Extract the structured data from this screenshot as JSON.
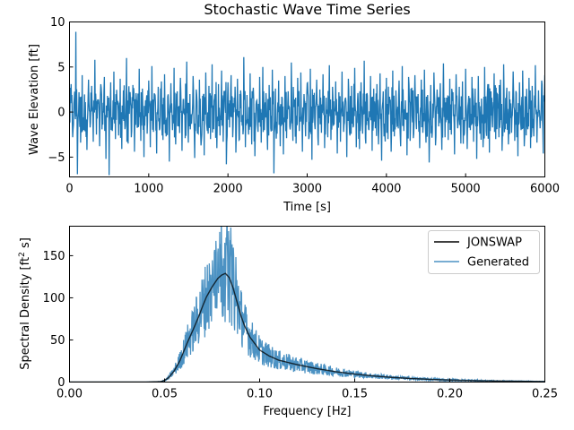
{
  "chart_data": [
    {
      "type": "line",
      "title": "Stochastic Wave Time Series",
      "xlabel": "Time [s]",
      "ylabel": "Wave Elevation [ft]",
      "xlim": [
        0,
        6000
      ],
      "ylim": [
        -7.2,
        10
      ],
      "xticks": [
        0,
        1000,
        2000,
        3000,
        4000,
        5000,
        6000
      ],
      "yticks": [
        -5,
        0,
        5,
        10
      ],
      "grid": false,
      "series": [
        {
          "color": "#1f77b4",
          "description_values": "dense random wave elevation signal, roughly zero mean",
          "x_step": 20,
          "values": [
            -1.2,
            3.1,
            -2.8,
            1.5,
            8.9,
            -6.9,
            2.2,
            -3.4,
            4.1,
            -2.0,
            1.1,
            -4.2,
            3.6,
            -1.7,
            2.9,
            -3.3,
            5.8,
            -2.5,
            0.9,
            -3.8,
            2.7,
            -1.4,
            3.9,
            -5.2,
            1.8,
            -7.0,
            3.3,
            -2.1,
            4.5,
            -3.0,
            1.2,
            -2.6,
            3.7,
            -4.1,
            2.4,
            -1.9,
            6.0,
            -3.5,
            1.6,
            -2.8,
            3.0,
            -4.4,
            2.1,
            -1.5,
            4.8,
            -3.2,
            2.6,
            -5.0,
            1.3,
            -2.4,
            3.5,
            -3.9,
            5.1,
            -2.2,
            1.9,
            -4.6,
            2.8,
            -1.8,
            3.4,
            -3.1,
            4.2,
            -2.7,
            1.7,
            -5.5,
            3.2,
            -2.0,
            4.9,
            -3.6,
            2.3,
            -1.6,
            3.8,
            -4.3,
            1.4,
            -2.9,
            5.6,
            -3.4,
            2.0,
            -1.3,
            4.0,
            -5.1,
            2.5,
            -2.3,
            3.6,
            -3.7,
            1.8,
            -4.8,
            4.4,
            -2.1,
            2.9,
            -3.0,
            5.3,
            -1.9,
            1.5,
            -4.0,
            3.1,
            -2.6,
            4.6,
            -3.3,
            2.2,
            -5.8,
            3.3,
            -1.7,
            4.1,
            -2.8,
            1.6,
            -4.5,
            3.7,
            -3.1,
            2.4,
            -1.5,
            6.1,
            -3.9,
            1.9,
            -2.5,
            4.3,
            -3.6,
            2.7,
            -4.9,
            1.2,
            -2.2,
            3.9,
            -3.4,
            5.0,
            -2.0,
            2.1,
            -4.2,
            3.0,
            -1.8,
            4.7,
            -6.8,
            2.6,
            -2.4,
            3.5,
            -3.8,
            1.7,
            -4.7,
            4.0,
            -2.9,
            2.3,
            -1.6,
            5.5,
            -3.2,
            1.4,
            -3.5,
            3.8,
            -2.1,
            4.4,
            -4.4,
            2.0,
            -2.7,
            3.2,
            -3.0,
            4.8,
            -5.3,
            1.9,
            -1.9,
            3.6,
            -3.7,
            2.5,
            -2.3,
            4.2,
            -4.0,
            1.6,
            -2.8,
            5.2,
            -3.1,
            2.8,
            -1.4,
            3.4,
            -4.6,
            2.2,
            -3.3,
            4.5,
            -2.2,
            1.5,
            -5.0,
            3.7,
            -2.6,
            2.9,
            -1.7,
            4.9,
            -3.9,
            2.1,
            -4.1,
            3.3,
            -2.4,
            5.7,
            -3.5,
            1.8,
            -2.0,
            4.0,
            -4.3,
            2.6,
            -1.8,
            3.1,
            -3.6,
            4.3,
            -5.4,
            2.3,
            -2.5,
            3.8,
            -3.0,
            1.7,
            -4.4,
            4.6,
            -2.7,
            2.4,
            -1.5,
            3.5,
            -3.8,
            5.1,
            -2.1,
            1.3,
            -4.8,
            3.9,
            -3.2,
            2.7,
            -2.9,
            4.1,
            -1.9,
            2.0,
            -4.0,
            3.6,
            -2.3,
            4.7,
            -3.4,
            1.9,
            -5.6,
            3.0,
            -2.2,
            4.4,
            -3.7,
            2.5,
            -1.6,
            3.2,
            -4.2,
            5.4,
            -2.8,
            1.6,
            -3.1,
            3.7,
            -2.5,
            2.2,
            -4.7,
            4.2,
            -1.8,
            2.8,
            -3.5,
            3.4,
            -2.6,
            4.8,
            -4.1,
            1.8,
            -2.0,
            3.9,
            -3.3,
            2.6,
            -5.2,
            4.0,
            -2.4,
            1.5,
            -3.9,
            5.0,
            -2.1,
            3.1,
            -4.5,
            2.3,
            -1.7,
            4.3,
            -3.0,
            2.0,
            -2.8,
            3.6,
            -4.3,
            5.3,
            -1.9,
            2.7,
            -3.6,
            1.4,
            -2.3,
            4.5,
            -3.2,
            2.1,
            -4.9,
            3.3,
            -2.0,
            4.6,
            -3.8,
            1.7,
            -1.5,
            3.8,
            -4.0,
            2.9,
            -2.7,
            5.2,
            -3.4,
            2.4,
            -1.8,
            3.5,
            -4.6,
            4.1,
            -2.2,
            1.6,
            -3.1,
            3.0,
            -2.5,
            4.7,
            -4.2,
            2.2,
            -1.6,
            3.4,
            -3.7,
            5.6,
            -2.9,
            1.9,
            -4.4,
            3.7,
            -2.1,
            2.5,
            -3.3,
            4.0,
            -1.9,
            2.0,
            -4.8,
            3.2,
            -2.6,
            4.4,
            -3.5,
            1.8,
            -2.2,
            3.9,
            -4.1,
            2.6,
            -1.7,
            4.8,
            -3.0,
            2.3,
            -5.1,
            3.6,
            -2.4,
            1.7,
            -3.8,
            4.2,
            -2.0,
            3.0,
            -4.3,
            2.1,
            -2.8,
            5.0,
            -3.6,
            2.8,
            -1.5,
            3.3,
            -4.5,
            4.5,
            -2.3,
            1.5,
            -3.2,
            3.8,
            -2.7,
            2.4,
            -4.0,
            4.9,
            -1.8,
            2.9,
            -3.4,
            3.5,
            -2.5,
            4.1,
            -4.7,
            1.6,
            -2.1,
            3.7,
            -3.9,
            2.7,
            -1.6,
            5.4,
            -3.1,
            2.2,
            -4.2,
            3.1,
            -2.6,
            4.6,
            -3.5,
            1.9,
            -2.0,
            3.4,
            -4.4,
            2.5,
            -1.9,
            4.3,
            -3.3,
            2.0,
            -4.9,
            3.9,
            -2.2,
            1.4,
            -3.7,
            4.7,
            -2.8,
            2.8,
            -4.1,
            3.6,
            -1.7,
            4.0,
            -3.0,
            2.3,
            -2.4,
            5.1,
            -3.8,
            1.8,
            -4.6,
            3.2,
            -2.1,
            2.6,
            -3.4,
            4.4,
            -1.8,
            3.0,
            -4.0,
            2.1,
            -2.7,
            4.8,
            -3.6,
            1.6,
            -2.3,
            3.7,
            -4.8,
            2.9,
            -1.5,
            4.2,
            -3.2,
            2.4,
            -2.9,
            3.3,
            -4.3,
            5.2,
            -2.0,
            1.7,
            -3.5,
            3.8,
            -2.5,
            2.2,
            -4.5,
            4.5,
            -1.9,
            2.7,
            -3.9,
            3.5,
            -2.2,
            4.0,
            -3.1,
            1.5,
            -4.7,
            3.1,
            -2.6,
            4.6,
            -3.7,
            2.0,
            -1.6,
            3.9,
            -4.2,
            2.5,
            -2.8,
            4.9,
            -3.4,
            1.9,
            -2.0,
            3.4,
            -4.0,
            2.8,
            -1.7,
            4.3,
            -3.5,
            2.3,
            -4.4,
            3.6,
            -2.4,
            1.6,
            -3.0,
            4.7,
            -2.1,
            2.9,
            -3.8,
            3.2,
            -2.7,
            5.3,
            -4.1,
            1.8,
            -1.8,
            3.7,
            -3.3,
            2.4,
            -4.6,
            4.1,
            -2.3,
            2.1,
            -3.6,
            3.0,
            -2.0,
            4.4,
            -4.3,
            1.7,
            -2.5,
            3.5,
            -3.9,
            2.6,
            -1.9,
            4.8,
            -3.2,
            2.2,
            -4.8,
            3.3,
            -2.2,
            1.5,
            -3.4,
            4.2,
            -2.9,
            2.7,
            -1.6,
            3.8,
            -4.0,
            2.0,
            -2.6,
            4.6,
            -3.7,
            1.9,
            -4.5,
            3.1,
            -2.1,
            2.5,
            -3.1,
            4.0,
            -1.8,
            3.4,
            -4.2,
            2.3,
            -2.4,
            5.0,
            -3.5,
            1.6,
            -1.5,
            3.6,
            -3.8,
            2.8,
            -4.4,
            4.3,
            -2.0,
            2.1,
            -3.3,
            3.9,
            -2.8,
            4.5,
            -4.1,
            1.8,
            -1.9,
            3.2,
            -3.6,
            2.4,
            -2.3,
            4.1,
            -4.6,
            2.6,
            -1.7,
            3.7,
            -3.0,
            2.0,
            -4.9,
            4.7,
            -2.5,
            1.7,
            -3.4,
            3.0,
            -2.2,
            4.4,
            -3.8,
            2.9,
            -1.6,
            3.5,
            -4.3,
            2.2,
            -2.7,
            4.9,
            -3.1,
            1.5,
            -4.0,
            3.3,
            -2.1,
            2.5,
            -3.5,
            4.2,
            -1.8,
            3.8,
            -4.5,
            2.1,
            -2.6,
            3.6,
            -3.2,
            2.7,
            -3.9
          ]
        }
      ]
    },
    {
      "type": "line",
      "title": "",
      "xlabel": "Frequency [Hz]",
      "ylabel": "Spectral Density [ft",
      "ylabel_sup": "2",
      "ylabel_tail": " s]",
      "xlim": [
        0.0,
        0.25
      ],
      "ylim": [
        0,
        185
      ],
      "xticks": [
        0.0,
        0.05,
        0.1,
        0.15,
        0.2,
        0.25
      ],
      "xtick_labels": [
        "0.00",
        "0.05",
        "0.10",
        "0.15",
        "0.20",
        "0.25"
      ],
      "yticks": [
        0,
        50,
        100,
        150
      ],
      "grid": false,
      "legend_position": "top-right",
      "series": [
        {
          "name": "JONSWAP",
          "color": "#000000",
          "x": [
            0.0,
            0.04,
            0.048,
            0.05,
            0.052,
            0.055,
            0.058,
            0.06,
            0.062,
            0.065,
            0.068,
            0.07,
            0.072,
            0.075,
            0.078,
            0.08,
            0.082,
            0.084,
            0.086,
            0.088,
            0.09,
            0.092,
            0.095,
            0.1,
            0.105,
            0.11,
            0.12,
            0.13,
            0.14,
            0.15,
            0.16,
            0.17,
            0.18,
            0.19,
            0.2,
            0.22,
            0.25
          ],
          "y": [
            0,
            0,
            0.5,
            2,
            5,
            13,
            25,
            36,
            47,
            62,
            78,
            90,
            101,
            113,
            123,
            127,
            129,
            124,
            112,
            96,
            80,
            67,
            53,
            38,
            31,
            26,
            20.5,
            16,
            12.3,
            9.5,
            7.2,
            5.5,
            4.2,
            3.2,
            2.4,
            1.4,
            0.6
          ]
        },
        {
          "name": "Generated",
          "color": "#1f77b4",
          "note_values": "noisy spectral estimate scattered around the JONSWAP curve"
        }
      ]
    }
  ]
}
